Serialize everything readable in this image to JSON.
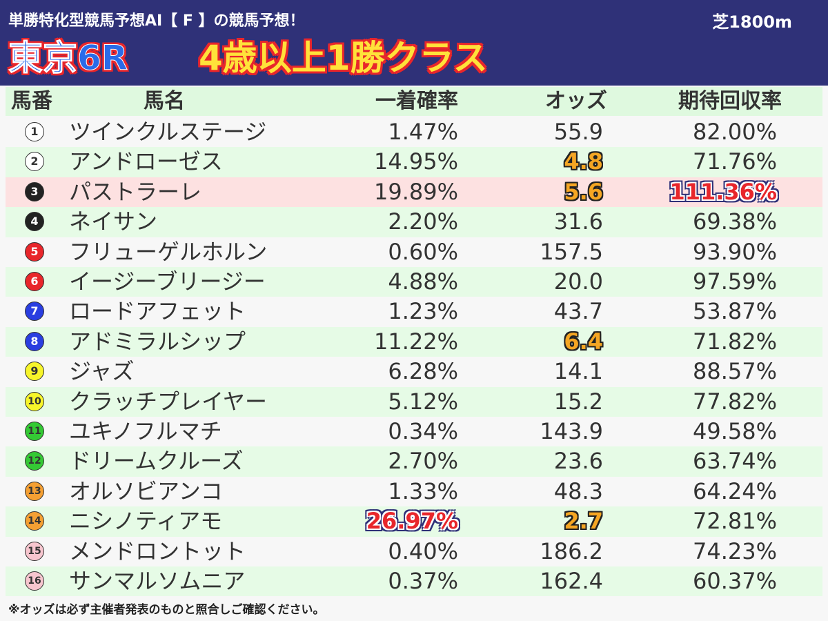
{
  "header": {
    "subtitle": "単勝特化型競馬予想AI【 F 】の競馬予想！",
    "surface": "芝1800m",
    "race_name": "東京6R",
    "race_class": "4歳以上1勝クラス",
    "bg_color": "#2f3178"
  },
  "columns": {
    "number": "馬番",
    "name": "馬名",
    "win_prob": "一着確率",
    "odds": "オッズ",
    "expected_return": "期待回収率"
  },
  "horses": [
    {
      "num": "1",
      "name": "ツインクルステージ",
      "win_prob": "1.47%",
      "odds": "55.9",
      "expected_return": "82.00%",
      "circle_color": "#ffffff",
      "num_color": "#333333"
    },
    {
      "num": "2",
      "name": "アンドローゼス",
      "win_prob": "14.95%",
      "odds": "4.8",
      "expected_return": "71.76%",
      "circle_color": "#ffffff",
      "num_color": "#333333",
      "odds_highlight": true
    },
    {
      "num": "3",
      "name": "パストラーレ",
      "win_prob": "19.89%",
      "odds": "5.6",
      "expected_return": "111.36%",
      "circle_color": "#222222",
      "num_color": "#ffffff",
      "odds_highlight": true,
      "return_highlight": true,
      "row_highlight": true
    },
    {
      "num": "4",
      "name": "ネイサン",
      "win_prob": "2.20%",
      "odds": "31.6",
      "expected_return": "69.38%",
      "circle_color": "#222222",
      "num_color": "#ffffff"
    },
    {
      "num": "5",
      "name": "フリューゲルホルン",
      "win_prob": "0.60%",
      "odds": "157.5",
      "expected_return": "93.90%",
      "circle_color": "#e8262b",
      "num_color": "#ffffff"
    },
    {
      "num": "6",
      "name": "イージーブリージー",
      "win_prob": "4.88%",
      "odds": "20.0",
      "expected_return": "97.59%",
      "circle_color": "#e8262b",
      "num_color": "#ffffff"
    },
    {
      "num": "7",
      "name": "ロードアフェット",
      "win_prob": "1.23%",
      "odds": "43.7",
      "expected_return": "53.87%",
      "circle_color": "#2a3ee0",
      "num_color": "#ffffff"
    },
    {
      "num": "8",
      "name": "アドミラルシップ",
      "win_prob": "11.22%",
      "odds": "6.4",
      "expected_return": "71.82%",
      "circle_color": "#2a3ee0",
      "num_color": "#ffffff",
      "odds_highlight": true
    },
    {
      "num": "9",
      "name": "ジャズ",
      "win_prob": "6.28%",
      "odds": "14.1",
      "expected_return": "88.57%",
      "circle_color": "#f7f52a",
      "num_color": "#333333"
    },
    {
      "num": "10",
      "name": "クラッチプレイヤー",
      "win_prob": "5.12%",
      "odds": "15.2",
      "expected_return": "77.82%",
      "circle_color": "#f7f52a",
      "num_color": "#333333"
    },
    {
      "num": "11",
      "name": "ユキノフルマチ",
      "win_prob": "0.34%",
      "odds": "143.9",
      "expected_return": "49.58%",
      "circle_color": "#34c934",
      "num_color": "#333333"
    },
    {
      "num": "12",
      "name": "ドリームクルーズ",
      "win_prob": "2.70%",
      "odds": "23.6",
      "expected_return": "63.74%",
      "circle_color": "#34c934",
      "num_color": "#333333"
    },
    {
      "num": "13",
      "name": "オルソビアンコ",
      "win_prob": "1.33%",
      "odds": "48.3",
      "expected_return": "64.24%",
      "circle_color": "#f5a033",
      "num_color": "#333333"
    },
    {
      "num": "14",
      "name": "ニシノティアモ",
      "win_prob": "26.97%",
      "odds": "2.7",
      "expected_return": "72.81%",
      "circle_color": "#f5a033",
      "num_color": "#333333",
      "odds_highlight": true,
      "prob_highlight": true
    },
    {
      "num": "15",
      "name": "メンドロントット",
      "win_prob": "0.40%",
      "odds": "186.2",
      "expected_return": "74.23%",
      "circle_color": "#f7c6cf",
      "num_color": "#333333"
    },
    {
      "num": "16",
      "name": "サンマルソムニア",
      "win_prob": "0.37%",
      "odds": "162.4",
      "expected_return": "60.37%",
      "circle_color": "#f7c6cf",
      "num_color": "#333333"
    }
  ],
  "footnote": "※オッズは必ず主催者発表のものと照合しご確認ください。"
}
